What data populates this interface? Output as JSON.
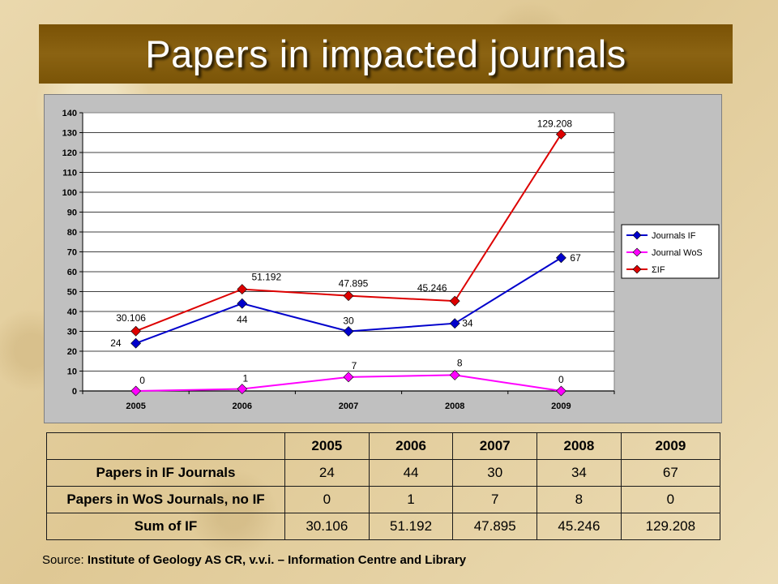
{
  "title": "Papers in impacted journals",
  "colors": {
    "title_banner": "#7a5205",
    "journals_if": "#0000cc",
    "journal_wos": "#ff00ff",
    "sum_if": "#dd0000"
  },
  "chart_data": {
    "type": "line",
    "categories": [
      "2005",
      "2006",
      "2007",
      "2008",
      "2009"
    ],
    "ylim": [
      0,
      140
    ],
    "yticks": [
      "0",
      "10",
      "20",
      "30",
      "40",
      "50",
      "60",
      "70",
      "80",
      "90",
      "100",
      "110",
      "120",
      "130",
      "140"
    ],
    "grid": true,
    "legend_position": "right",
    "series": [
      {
        "name": "Journals IF",
        "values": [
          24,
          44,
          30,
          34,
          67
        ],
        "labels": [
          "24",
          "44",
          "30",
          "34",
          "67"
        ],
        "color": "#0000cc",
        "marker": "diamond"
      },
      {
        "name": "Journal WoS",
        "values": [
          0,
          1,
          7,
          8,
          0
        ],
        "labels": [
          "0",
          "1",
          "7",
          "8",
          "0"
        ],
        "color": "#ff00ff",
        "marker": "diamond"
      },
      {
        "name": "ΣIF",
        "values": [
          30.106,
          51.192,
          47.895,
          45.246,
          129.208
        ],
        "labels": [
          "30.106",
          "51.192",
          "47.895",
          "45.246",
          "129.208"
        ],
        "color": "#dd0000",
        "marker": "diamond"
      }
    ]
  },
  "table": {
    "years": [
      "2005",
      "2006",
      "2007",
      "2008",
      "2009"
    ],
    "rows": [
      {
        "label": "Papers in IF Journals",
        "values": [
          "24",
          "44",
          "30",
          "34",
          "67"
        ]
      },
      {
        "label": "Papers in WoS Journals, no IF",
        "values": [
          "0",
          "1",
          "7",
          "8",
          "0"
        ]
      },
      {
        "label": "Sum of IF",
        "values": [
          "30.106",
          "51.192",
          "47.895",
          "45.246",
          "129.208"
        ]
      }
    ]
  },
  "source": {
    "prefix": "Source:",
    "text": "Institute of Geology AS CR, v.v.i. – Information Centre and Library"
  }
}
